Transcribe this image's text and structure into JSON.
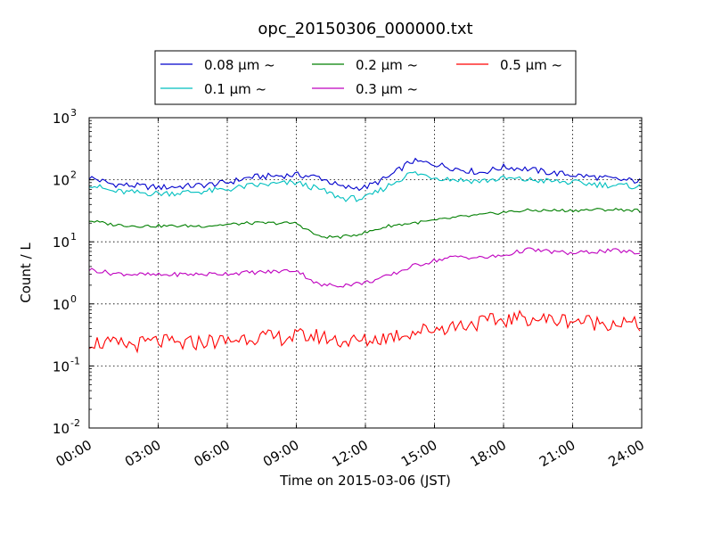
{
  "chart_data": {
    "type": "line",
    "title": "opc_20150306_000000.txt",
    "xlabel": "Time on 2015-03-06 (JST)",
    "ylabel": "Count / L",
    "yscale": "log",
    "ylim": [
      0.01,
      1000
    ],
    "xlim": [
      "00:00",
      "24:00"
    ],
    "x_tick_labels": [
      "00:00",
      "03:00",
      "06:00",
      "09:00",
      "12:00",
      "15:00",
      "18:00",
      "21:00",
      "24:00"
    ],
    "y_tick_labels": [
      {
        "base": "10",
        "exp": "-2"
      },
      {
        "base": "10",
        "exp": "-1"
      },
      {
        "base": "10",
        "exp": "0"
      },
      {
        "base": "10",
        "exp": "1"
      },
      {
        "base": "10",
        "exp": "2"
      },
      {
        "base": "10",
        "exp": "3"
      }
    ],
    "grid": true,
    "legend_position": "top-center",
    "x": [
      "00:00",
      "01:00",
      "02:00",
      "03:00",
      "04:00",
      "05:00",
      "06:00",
      "07:00",
      "08:00",
      "09:00",
      "10:00",
      "11:00",
      "12:00",
      "13:00",
      "14:00",
      "15:00",
      "16:00",
      "17:00",
      "18:00",
      "19:00",
      "20:00",
      "21:00",
      "22:00",
      "23:00",
      "24:00"
    ],
    "series": [
      {
        "name": "0.08 µm ~",
        "color": "#0000cc",
        "values": [
          110,
          85,
          80,
          75,
          78,
          82,
          90,
          110,
          115,
          120,
          110,
          75,
          75,
          110,
          200,
          180,
          150,
          130,
          160,
          150,
          130,
          120,
          110,
          100,
          95
        ]
      },
      {
        "name": "0.1 µm ~",
        "color": "#00bfbf",
        "values": [
          85,
          65,
          62,
          60,
          62,
          65,
          70,
          80,
          85,
          90,
          70,
          50,
          50,
          80,
          130,
          110,
          100,
          95,
          105,
          100,
          95,
          90,
          85,
          80,
          78
        ]
      },
      {
        "name": "0.2 µm ~",
        "color": "#007f00",
        "values": [
          22,
          19,
          18,
          18,
          18,
          18,
          19,
          20,
          20,
          20,
          12,
          12,
          14,
          18,
          20,
          22,
          25,
          27,
          30,
          32,
          32,
          32,
          33,
          33,
          32
        ]
      },
      {
        "name": "0.3 µm ~",
        "color": "#bf00bf",
        "values": [
          3.6,
          3.1,
          3.0,
          2.9,
          3.0,
          3.0,
          3.1,
          3.2,
          3.3,
          3.5,
          2.0,
          2.0,
          2.2,
          2.8,
          4.0,
          5.0,
          5.8,
          5.5,
          6.0,
          7.5,
          7.0,
          6.5,
          7.0,
          7.2,
          6.5
        ]
      },
      {
        "name": "0.5 µm ~",
        "color": "#ff0000",
        "values": [
          0.25,
          0.22,
          0.22,
          0.25,
          0.22,
          0.25,
          0.25,
          0.3,
          0.28,
          0.3,
          0.3,
          0.25,
          0.25,
          0.3,
          0.35,
          0.4,
          0.45,
          0.5,
          0.55,
          0.6,
          0.55,
          0.55,
          0.5,
          0.5,
          0.45
        ]
      }
    ]
  }
}
